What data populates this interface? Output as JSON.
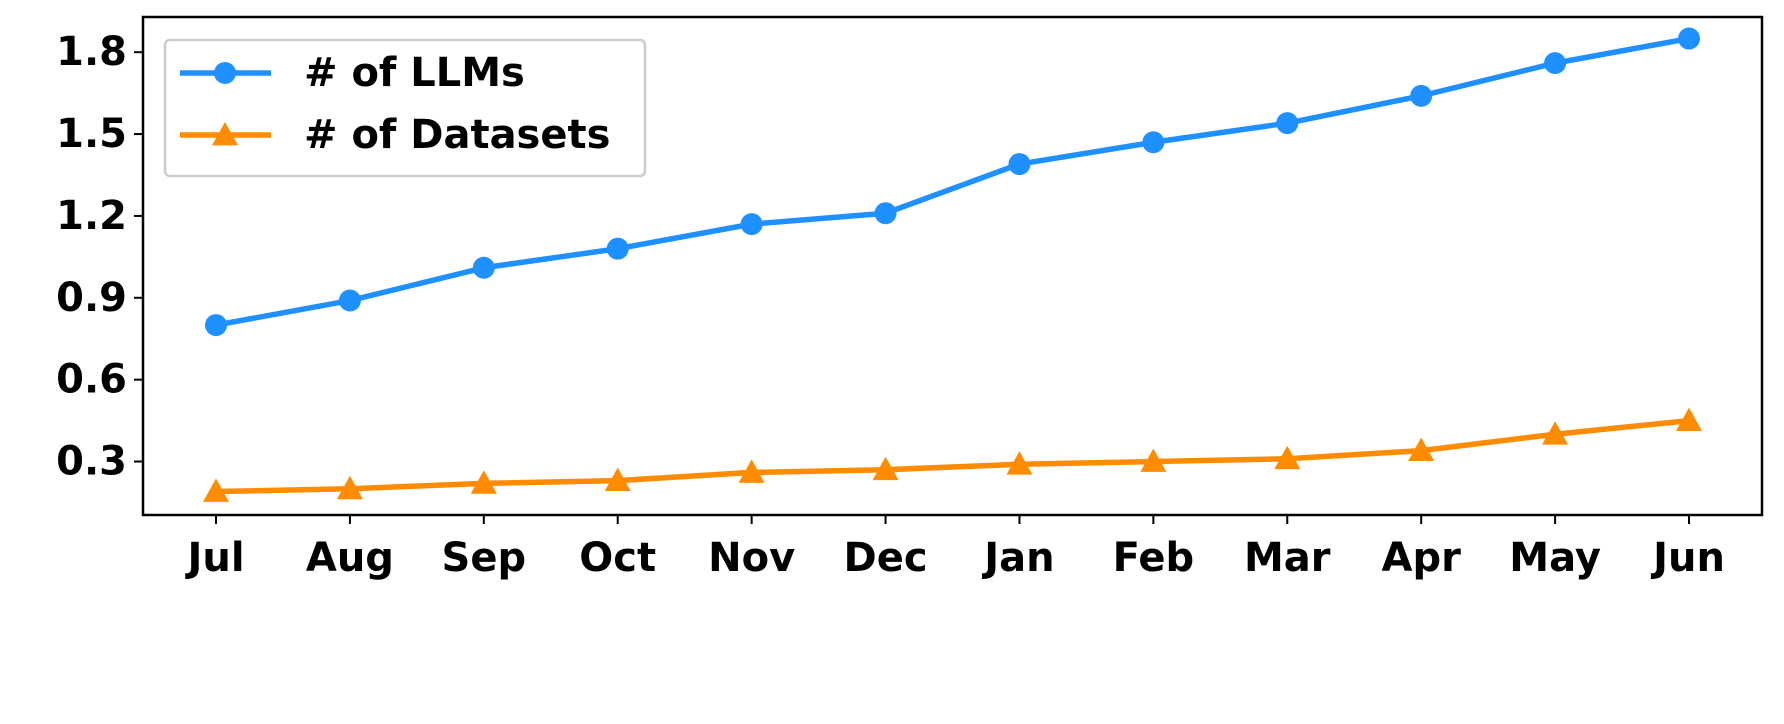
{
  "chart_data": {
    "type": "line",
    "categories": [
      "Jul",
      "Aug",
      "Sep",
      "Oct",
      "Nov",
      "Dec",
      "Jan",
      "Feb",
      "Mar",
      "Apr",
      "May",
      "Jun"
    ],
    "series": [
      {
        "name": "# of LLMs",
        "color": "#1e90ff",
        "marker": "circle",
        "values": [
          0.8,
          0.89,
          1.01,
          1.08,
          1.17,
          1.21,
          1.39,
          1.47,
          1.54,
          1.64,
          1.76,
          1.85
        ]
      },
      {
        "name": "# of Datasets",
        "color": "#ff8c00",
        "marker": "triangle",
        "values": [
          0.19,
          0.2,
          0.22,
          0.23,
          0.26,
          0.27,
          0.29,
          0.3,
          0.31,
          0.34,
          0.4,
          0.45
        ]
      }
    ],
    "ylim": [
      0.104,
      1.929
    ],
    "yticks": [
      0.3,
      0.6,
      0.9,
      1.2,
      1.5,
      1.8
    ],
    "grid": false,
    "legend": "upper-left"
  }
}
